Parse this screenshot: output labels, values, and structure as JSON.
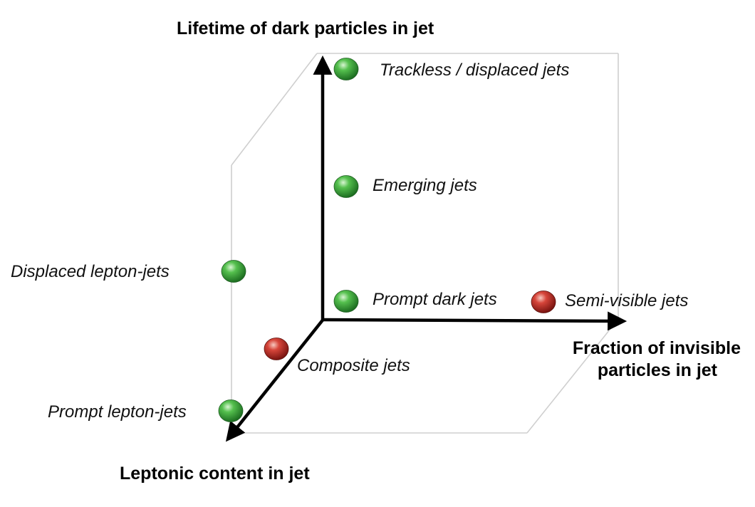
{
  "axes": {
    "vertical": "Lifetime of dark particles in jet",
    "horizontal_line1": "Fraction of invisible",
    "horizontal_line2": "particles in jet",
    "depth": "Leptonic content in jet"
  },
  "colors": {
    "green_sphere": "#3aa63a",
    "red_sphere": "#c8302a",
    "axis": "#000000",
    "frame": "#cfcfcf"
  },
  "jets": [
    {
      "name": "trackless",
      "label": "Trackless / displaced jets",
      "color": "green"
    },
    {
      "name": "emerging",
      "label": "Emerging jets",
      "color": "green"
    },
    {
      "name": "prompt-dark",
      "label": "Prompt dark jets",
      "color": "green"
    },
    {
      "name": "semi-visible",
      "label": "Semi-visible jets",
      "color": "red"
    },
    {
      "name": "displaced-lepton",
      "label": "Displaced lepton-jets",
      "color": "green"
    },
    {
      "name": "composite",
      "label": "Composite jets",
      "color": "red"
    },
    {
      "name": "prompt-lepton",
      "label": "Prompt lepton-jets",
      "color": "green"
    }
  ]
}
